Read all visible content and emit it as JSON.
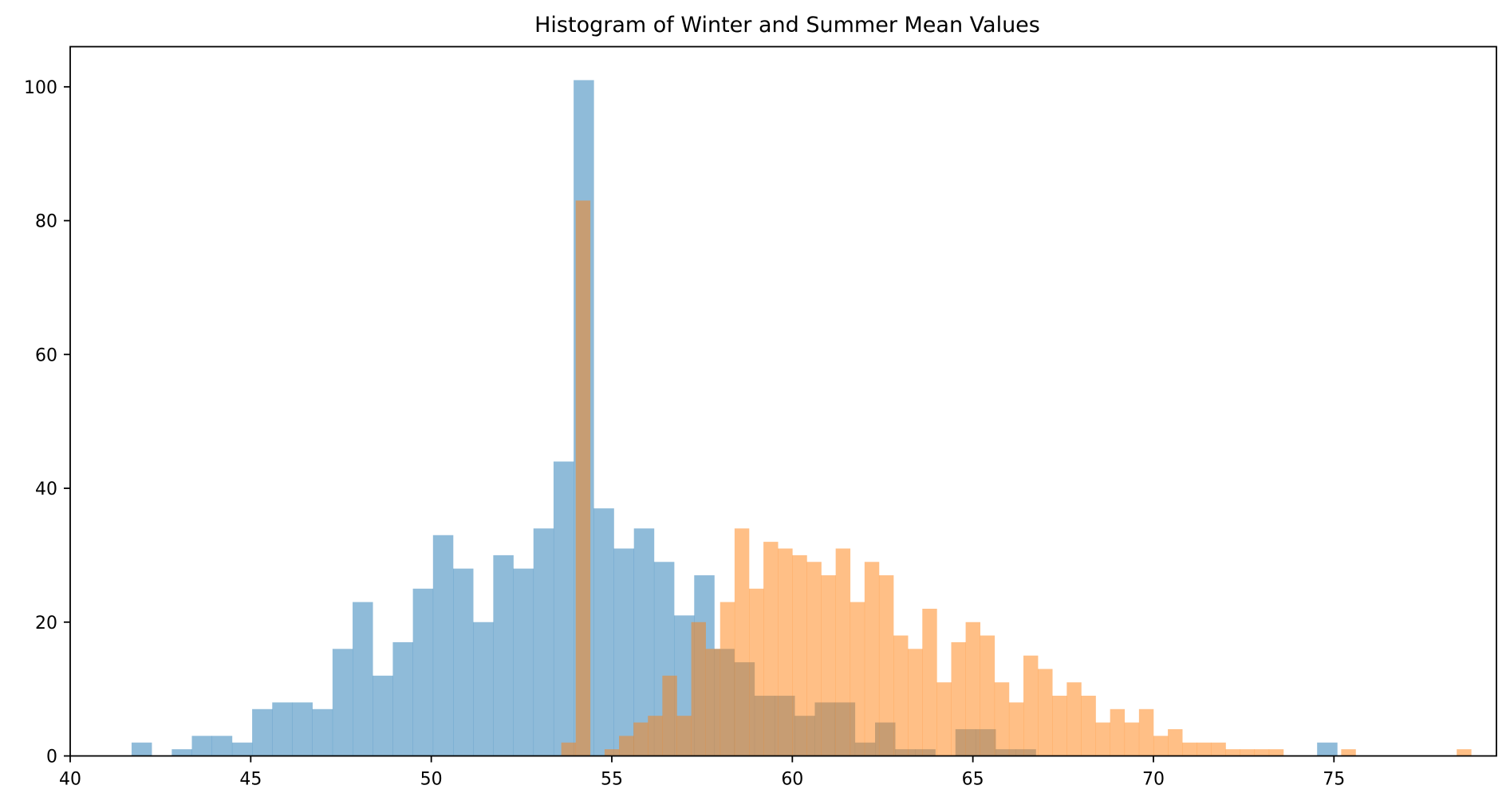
{
  "chart_data": {
    "type": "bar",
    "title": "Histogram of Winter and Summer Mean Values",
    "xlabel": "",
    "ylabel": "",
    "xlim": [
      40,
      79.5
    ],
    "ylim": [
      0,
      106
    ],
    "x_ticks": [
      40,
      45,
      50,
      55,
      60,
      65,
      70,
      75
    ],
    "y_ticks": [
      0,
      20,
      40,
      60,
      80,
      100
    ],
    "grid": false,
    "series": [
      {
        "color": "#1f77b4",
        "opacity": 0.5,
        "bin_start": 41.7,
        "bin_width": 0.5565,
        "counts": [
          2,
          0,
          1,
          3,
          3,
          2,
          7,
          8,
          8,
          7,
          16,
          23,
          12,
          17,
          25,
          33,
          28,
          20,
          30,
          28,
          34,
          44,
          101,
          37,
          31,
          34,
          29,
          21,
          27,
          16,
          14,
          9,
          9,
          6,
          8,
          8,
          2,
          5,
          1,
          1,
          0,
          4,
          4,
          1,
          1,
          0,
          0,
          0,
          0,
          0,
          0,
          0,
          0,
          0,
          0,
          0,
          0,
          0,
          0,
          2
        ]
      },
      {
        "color": "#ff7f0e",
        "opacity": 0.5,
        "bin_start": 53.6,
        "bin_width": 0.4,
        "counts": [
          2,
          83,
          0,
          1,
          3,
          5,
          6,
          12,
          6,
          20,
          16,
          23,
          34,
          25,
          32,
          31,
          30,
          29,
          27,
          31,
          23,
          29,
          27,
          18,
          16,
          22,
          11,
          17,
          20,
          18,
          11,
          8,
          15,
          13,
          9,
          11,
          9,
          5,
          7,
          5,
          7,
          3,
          4,
          2,
          2,
          2,
          1,
          1,
          1,
          1,
          0,
          0,
          0,
          0,
          1,
          0,
          0,
          0,
          0,
          0,
          0,
          0,
          1
        ]
      }
    ]
  }
}
